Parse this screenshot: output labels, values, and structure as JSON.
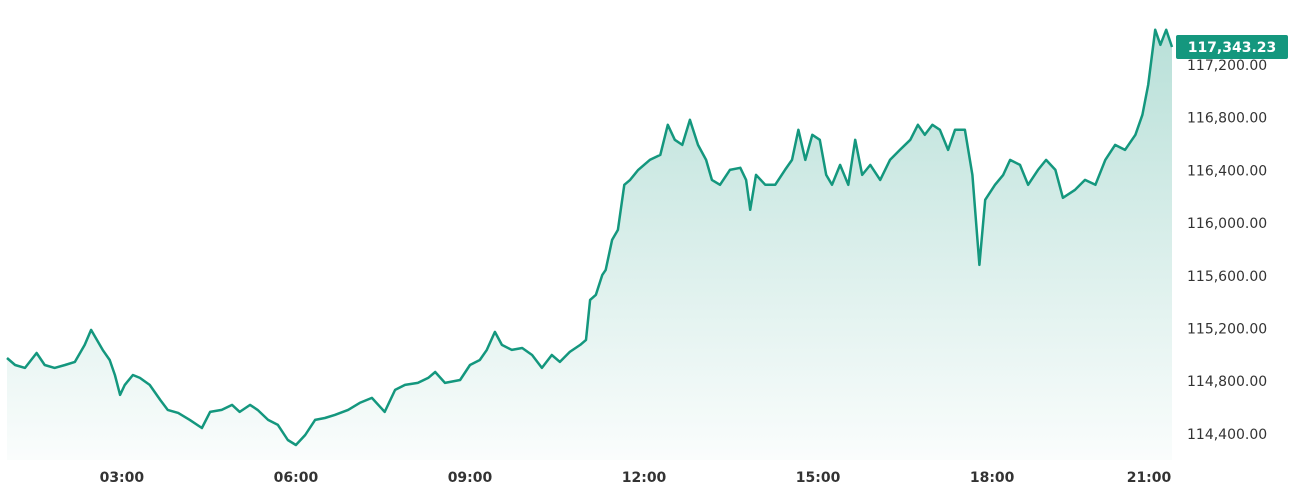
{
  "chart_data": {
    "type": "line",
    "color": "#14977e",
    "last_label": "117,343.23",
    "xlim": [
      1.02,
      21.1
    ],
    "xticks": [
      {
        "value": 3,
        "label": "03:00"
      },
      {
        "value": 6,
        "label": "06:00"
      },
      {
        "value": 9,
        "label": "09:00"
      },
      {
        "value": 12,
        "label": "12:00"
      },
      {
        "value": 15,
        "label": "15:00"
      },
      {
        "value": 18,
        "label": "18:00"
      },
      {
        "value": 21,
        "label": "21:00"
      }
    ],
    "ylim": [
      114210,
      117700
    ],
    "yticks": [
      {
        "value": 114400,
        "label": "114,400.00"
      },
      {
        "value": 114800,
        "label": "114,800.00"
      },
      {
        "value": 115200,
        "label": "115,200.00"
      },
      {
        "value": 115600,
        "label": "115,600.00"
      },
      {
        "value": 116000,
        "label": "116,000.00"
      },
      {
        "value": 116400,
        "label": "116,400.00"
      },
      {
        "value": 116800,
        "label": "116,800.00"
      },
      {
        "value": 117200,
        "label": "117,200.00"
      }
    ],
    "x": [
      1.02,
      1.16,
      1.33,
      1.53,
      1.67,
      1.84,
      2.02,
      2.19,
      2.36,
      2.47,
      2.57,
      2.67,
      2.79,
      2.88,
      2.97,
      3.05,
      3.19,
      3.31,
      3.48,
      3.66,
      3.79,
      3.97,
      4.17,
      4.38,
      4.52,
      4.72,
      4.9,
      5.03,
      5.21,
      5.34,
      5.52,
      5.69,
      5.86,
      6.0,
      6.16,
      6.33,
      6.5,
      6.67,
      6.9,
      7.1,
      7.31,
      7.53,
      7.71,
      7.88,
      8.1,
      8.28,
      8.4,
      8.57,
      8.83,
      9.0,
      9.17,
      9.29,
      9.43,
      9.55,
      9.72,
      9.9,
      10.07,
      10.24,
      10.41,
      10.55,
      10.72,
      10.9,
      11.0,
      11.07,
      11.17,
      11.28,
      11.34,
      11.45,
      11.55,
      11.66,
      11.76,
      11.9,
      12.1,
      12.28,
      12.41,
      12.53,
      12.66,
      12.79,
      12.93,
      13.07,
      13.17,
      13.31,
      13.48,
      13.66,
      13.76,
      13.83,
      13.93,
      14.09,
      14.26,
      14.43,
      14.55,
      14.66,
      14.78,
      14.9,
      15.03,
      15.14,
      15.24,
      15.38,
      15.52,
      15.64,
      15.76,
      15.9,
      16.07,
      16.24,
      16.41,
      16.59,
      16.72,
      16.84,
      16.97,
      17.1,
      17.24,
      17.36,
      17.53,
      17.66,
      17.78,
      17.88,
      18.05,
      18.19,
      18.31,
      18.48,
      18.62,
      18.79,
      18.93,
      19.09,
      19.22,
      19.43,
      19.6,
      19.78,
      19.95,
      20.12,
      20.29,
      20.47,
      20.59,
      20.69,
      20.81,
      20.9,
      21.0,
      21.1
    ],
    "values": [
      114984,
      114931,
      114909,
      115022,
      114931,
      114909,
      114931,
      114954,
      115083,
      115197,
      115121,
      115045,
      114969,
      114855,
      114704,
      114780,
      114855,
      114833,
      114780,
      114666,
      114590,
      114567,
      114514,
      114453,
      114575,
      114590,
      114628,
      114575,
      114628,
      114590,
      114514,
      114476,
      114362,
      114324,
      114400,
      114514,
      114529,
      114552,
      114590,
      114643,
      114681,
      114575,
      114742,
      114780,
      114795,
      114833,
      114878,
      114795,
      114817,
      114931,
      114969,
      115045,
      115182,
      115083,
      115045,
      115060,
      115007,
      114909,
      115007,
      114954,
      115030,
      115083,
      115121,
      115425,
      115463,
      115614,
      115652,
      115880,
      115956,
      116298,
      116335,
      116411,
      116487,
      116525,
      116753,
      116639,
      116601,
      116791,
      116601,
      116487,
      116335,
      116298,
      116411,
      116427,
      116335,
      116108,
      116373,
      116298,
      116298,
      116411,
      116487,
      116715,
      116487,
      116677,
      116639,
      116373,
      116298,
      116449,
      116298,
      116639,
      116373,
      116449,
      116335,
      116487,
      116563,
      116639,
      116753,
      116677,
      116753,
      116715,
      116563,
      116715,
      116715,
      116373,
      115690,
      116184,
      116298,
      116373,
      116487,
      116449,
      116298,
      116411,
      116487,
      116411,
      116199,
      116260,
      116335,
      116298,
      116487,
      116601,
      116563,
      116677,
      116829,
      117057,
      117474,
      117360,
      117474,
      117343.23
    ]
  }
}
